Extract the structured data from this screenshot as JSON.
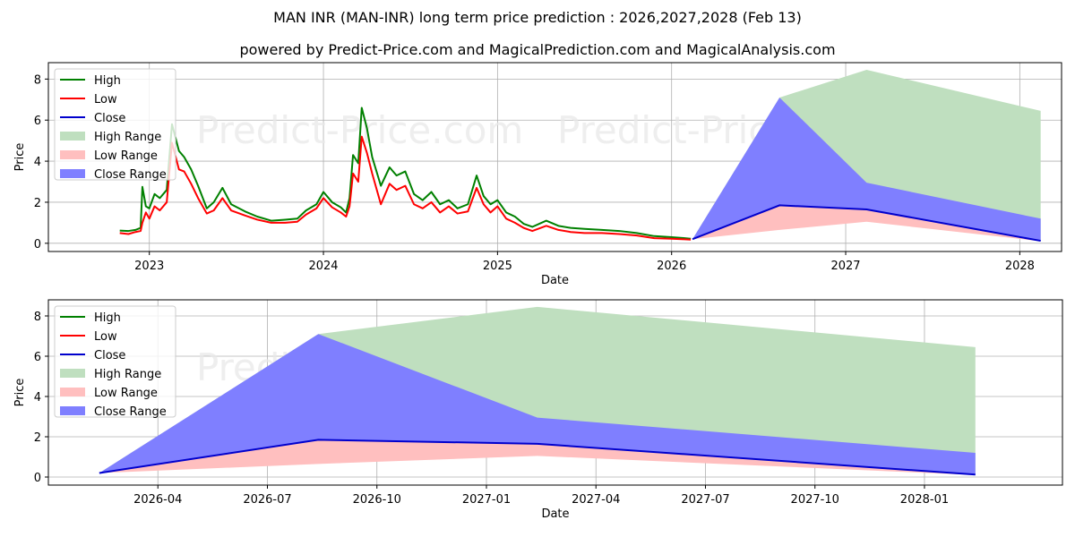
{
  "header": {
    "title": "MAN INR (MAN-INR) long term price prediction : 2026,2027,2028 (Feb 13)",
    "subtitle": "powered by Predict-Price.com and MagicalPrediction.com and MagicalAnalysis.com"
  },
  "watermark": "Predict-Price.com",
  "legend": [
    {
      "label": "High",
      "kind": "line",
      "color": "#008000"
    },
    {
      "label": "Low",
      "kind": "line",
      "color": "#ff0000"
    },
    {
      "label": "Close",
      "kind": "line",
      "color": "#0000cd"
    },
    {
      "label": "High Range",
      "kind": "patch",
      "color": "#bfdfbf"
    },
    {
      "label": "Low Range",
      "kind": "patch",
      "color": "#ffbfbf"
    },
    {
      "label": "Close Range",
      "kind": "patch",
      "color": "#7f7fff"
    }
  ],
  "chart_data": [
    {
      "type": "line",
      "title": "MAN INR (MAN-INR) long term price prediction : 2026,2027,2028 (Feb 13)",
      "xlabel": "Date",
      "ylabel": "Price",
      "ylim": [
        -0.4,
        8.8
      ],
      "yticks": [
        0,
        2,
        4,
        6,
        8
      ],
      "xticks": [
        "2023",
        "2024",
        "2025",
        "2026",
        "2027",
        "2028"
      ],
      "xrange_years": [
        2022.42,
        2028.24
      ],
      "grid": true,
      "legend_position": "upper left",
      "history": {
        "x_years": [
          2022.83,
          2022.88,
          2022.92,
          2022.95,
          2022.96,
          2022.98,
          2023.0,
          2023.03,
          2023.06,
          2023.1,
          2023.13,
          2023.17,
          2023.2,
          2023.24,
          2023.28,
          2023.33,
          2023.37,
          2023.42,
          2023.47,
          2023.55,
          2023.62,
          2023.7,
          2023.78,
          2023.85,
          2023.9,
          2023.96,
          2024.0,
          2024.05,
          2024.1,
          2024.13,
          2024.15,
          2024.17,
          2024.2,
          2024.22,
          2024.25,
          2024.28,
          2024.33,
          2024.38,
          2024.42,
          2024.47,
          2024.52,
          2024.57,
          2024.62,
          2024.67,
          2024.72,
          2024.77,
          2024.83,
          2024.88,
          2024.92,
          2024.96,
          2025.0,
          2025.05,
          2025.1,
          2025.15,
          2025.2,
          2025.28,
          2025.35,
          2025.42,
          2025.5,
          2025.6,
          2025.7,
          2025.8,
          2025.9,
          2026.0,
          2026.06,
          2026.11
        ],
        "high": [
          0.62,
          0.6,
          0.65,
          0.75,
          2.75,
          1.8,
          1.7,
          2.4,
          2.2,
          2.6,
          5.8,
          4.5,
          4.2,
          3.6,
          2.8,
          1.7,
          2.0,
          2.7,
          1.9,
          1.55,
          1.3,
          1.1,
          1.15,
          1.2,
          1.6,
          1.9,
          2.5,
          2.0,
          1.75,
          1.5,
          2.2,
          4.3,
          3.9,
          6.6,
          5.6,
          4.2,
          2.8,
          3.7,
          3.3,
          3.5,
          2.4,
          2.1,
          2.5,
          1.9,
          2.1,
          1.7,
          1.9,
          3.3,
          2.3,
          1.9,
          2.1,
          1.5,
          1.3,
          0.95,
          0.8,
          1.1,
          0.85,
          0.75,
          0.7,
          0.65,
          0.6,
          0.5,
          0.35,
          0.3,
          0.26,
          0.22
        ],
        "low": [
          0.5,
          0.45,
          0.55,
          0.6,
          1.0,
          1.5,
          1.2,
          1.8,
          1.6,
          2.0,
          4.9,
          3.6,
          3.5,
          2.9,
          2.2,
          1.45,
          1.6,
          2.2,
          1.6,
          1.35,
          1.15,
          1.0,
          1.0,
          1.05,
          1.4,
          1.7,
          2.2,
          1.75,
          1.5,
          1.3,
          1.8,
          3.4,
          3.0,
          5.2,
          4.4,
          3.4,
          1.9,
          2.9,
          2.6,
          2.8,
          1.9,
          1.7,
          2.0,
          1.5,
          1.8,
          1.45,
          1.55,
          2.7,
          1.9,
          1.5,
          1.8,
          1.2,
          1.0,
          0.75,
          0.6,
          0.85,
          0.65,
          0.55,
          0.5,
          0.5,
          0.45,
          0.38,
          0.25,
          0.22,
          0.2,
          0.18
        ]
      },
      "prediction": {
        "x_years": [
          2026.12,
          2026.62,
          2027.12,
          2028.12
        ],
        "close": [
          0.2,
          1.85,
          1.65,
          0.12
        ],
        "close_range_top": [
          0.2,
          7.1,
          2.95,
          1.2
        ],
        "high_range_top": [
          0.2,
          7.1,
          8.45,
          6.45
        ],
        "low_range_bottom": [
          0.2,
          0.65,
          1.05,
          0.1
        ]
      }
    },
    {
      "type": "line",
      "title": "",
      "xlabel": "Date",
      "ylabel": "Price",
      "ylim": [
        -0.4,
        8.8
      ],
      "yticks": [
        0,
        2,
        4,
        6,
        8
      ],
      "xticks": [
        "2026-04",
        "2026-07",
        "2026-10",
        "2027-01",
        "2027-04",
        "2027-07",
        "2027-10",
        "2028-01"
      ],
      "grid": true,
      "legend_position": "upper left",
      "prediction": {
        "x_dates": [
          "2026-02-13",
          "2026-08-13",
          "2027-02-13",
          "2028-02-13"
        ],
        "close": [
          0.2,
          1.85,
          1.65,
          0.12
        ],
        "close_range_top": [
          0.2,
          7.1,
          2.95,
          1.2
        ],
        "high_range_top": [
          0.2,
          7.1,
          8.45,
          6.45
        ],
        "low_range_bottom": [
          0.2,
          0.65,
          1.05,
          0.1
        ]
      }
    }
  ]
}
